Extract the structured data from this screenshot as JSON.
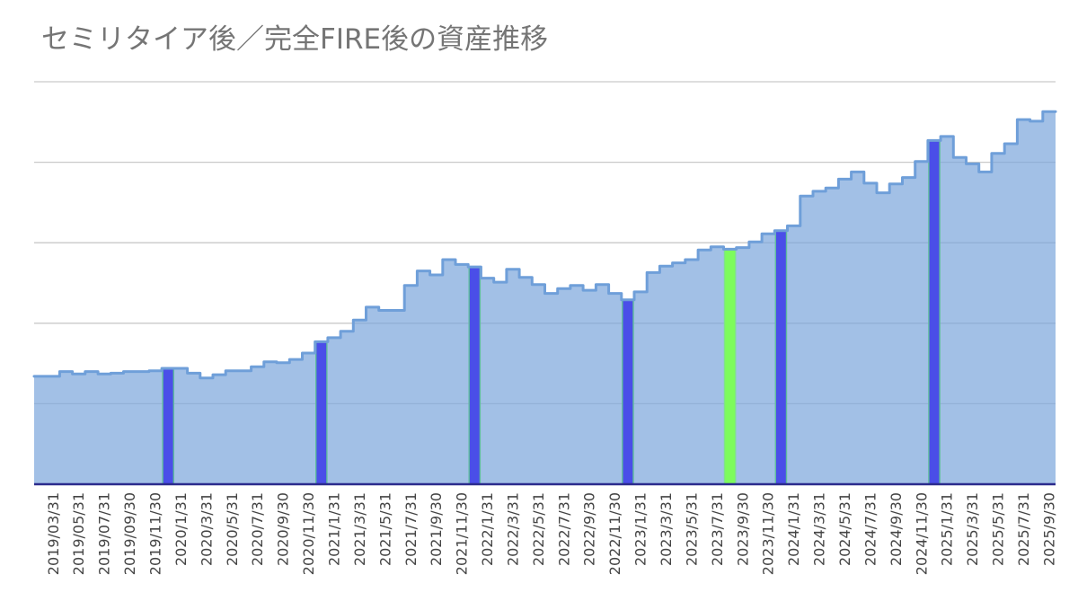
{
  "chart_data": {
    "type": "area",
    "stepped": true,
    "title": "セミリタイア後／完全FIRE後の資産推移",
    "xlabel": "",
    "ylabel": "",
    "ylim": [
      0,
      5
    ],
    "y_grid_step": 1,
    "grid": true,
    "legend": "none",
    "categories": [
      "",
      "2019/03/31",
      "",
      "2019/05/31",
      "",
      "2019/07/31",
      "",
      "2019/09/30",
      "",
      "2019/11/30",
      "",
      "2020/1/31",
      "",
      "2020/3/31",
      "",
      "2020/5/31",
      "",
      "2020/7/31",
      "",
      "2020/9/30",
      "",
      "2020/11/30",
      "",
      "2021/1/31",
      "",
      "2021/3/31",
      "",
      "2021/5/31",
      "",
      "2021/7/31",
      "",
      "2021/9/30",
      "",
      "2021/11/30",
      "",
      "2022/1/31",
      "",
      "2022/3/31",
      "",
      "2022/5/31",
      "",
      "2022/7/31",
      "",
      "2022/9/30",
      "",
      "2022/11/30",
      "",
      "2023/1/31",
      "",
      "2023/3/31",
      "",
      "2023/5/31",
      "",
      "2023/7/31",
      "",
      "2023/9/30",
      "",
      "2023/11/30",
      "",
      "2024/1/31",
      "",
      "2024/3/31",
      "",
      "2024/5/31",
      "",
      "2024/7/31",
      "",
      "2024/9/30",
      "",
      "2024/11/30",
      "",
      "2025/1/31",
      "",
      "2025/3/31",
      "",
      "2025/5/31",
      "",
      "2025/7/31",
      "",
      "2025/9/30"
    ],
    "series": [
      {
        "color": "#7ba5dc",
        "line_color": "#6f9fd9",
        "values": [
          1.34,
          1.34,
          1.4,
          1.37,
          1.4,
          1.37,
          1.38,
          1.4,
          1.4,
          1.41,
          1.44,
          1.44,
          1.38,
          1.32,
          1.36,
          1.41,
          1.41,
          1.46,
          1.52,
          1.51,
          1.55,
          1.63,
          1.77,
          1.82,
          1.9,
          2.04,
          2.2,
          2.16,
          2.16,
          2.47,
          2.65,
          2.6,
          2.79,
          2.73,
          2.7,
          2.56,
          2.51,
          2.67,
          2.57,
          2.48,
          2.37,
          2.43,
          2.47,
          2.41,
          2.48,
          2.37,
          2.29,
          2.39,
          2.63,
          2.71,
          2.75,
          2.79,
          2.91,
          2.95,
          2.92,
          2.94,
          3.01,
          3.11,
          3.15,
          3.21,
          3.58,
          3.64,
          3.68,
          3.79,
          3.88,
          3.74,
          3.62,
          3.73,
          3.81,
          4.01,
          4.27,
          4.32,
          4.06,
          3.98,
          3.88,
          4.11,
          4.23,
          4.53,
          4.51,
          4.63
        ]
      }
    ],
    "highlight_series": [
      {
        "color": "#4a4ee8",
        "stroke": "#5fbd9c",
        "values": [
          null,
          null,
          null,
          null,
          null,
          null,
          null,
          null,
          null,
          null,
          1.44,
          null,
          null,
          null,
          null,
          null,
          null,
          null,
          null,
          null,
          null,
          null,
          1.77,
          null,
          null,
          null,
          null,
          null,
          null,
          null,
          null,
          null,
          null,
          null,
          2.7,
          null,
          null,
          null,
          null,
          null,
          null,
          null,
          null,
          null,
          null,
          null,
          2.29,
          null,
          null,
          null,
          null,
          null,
          null,
          null,
          null,
          null,
          null,
          null,
          3.15,
          null,
          null,
          null,
          null,
          null,
          null,
          null,
          null,
          null,
          null,
          null,
          4.27,
          null,
          null,
          null,
          null,
          null,
          null,
          null,
          null,
          null
        ]
      },
      {
        "color": "#7dfb5c",
        "stroke": "#7fe28a",
        "values": [
          null,
          null,
          null,
          null,
          null,
          null,
          null,
          null,
          null,
          null,
          null,
          null,
          null,
          null,
          null,
          null,
          null,
          null,
          null,
          null,
          null,
          null,
          null,
          null,
          null,
          null,
          null,
          null,
          null,
          null,
          null,
          null,
          null,
          null,
          null,
          null,
          null,
          null,
          null,
          null,
          null,
          null,
          null,
          null,
          null,
          null,
          null,
          null,
          null,
          null,
          null,
          null,
          null,
          null,
          2.92,
          null,
          null,
          null,
          null,
          null,
          null,
          null,
          null,
          null,
          null,
          null,
          null,
          null,
          null,
          null,
          null,
          null,
          null,
          null,
          null,
          null,
          null,
          null,
          null,
          null
        ]
      }
    ],
    "colors": {
      "title": "#757575",
      "gridline": "#c9c9c9",
      "baseline": "#2b2b8c",
      "tick_label": "#454545"
    }
  }
}
